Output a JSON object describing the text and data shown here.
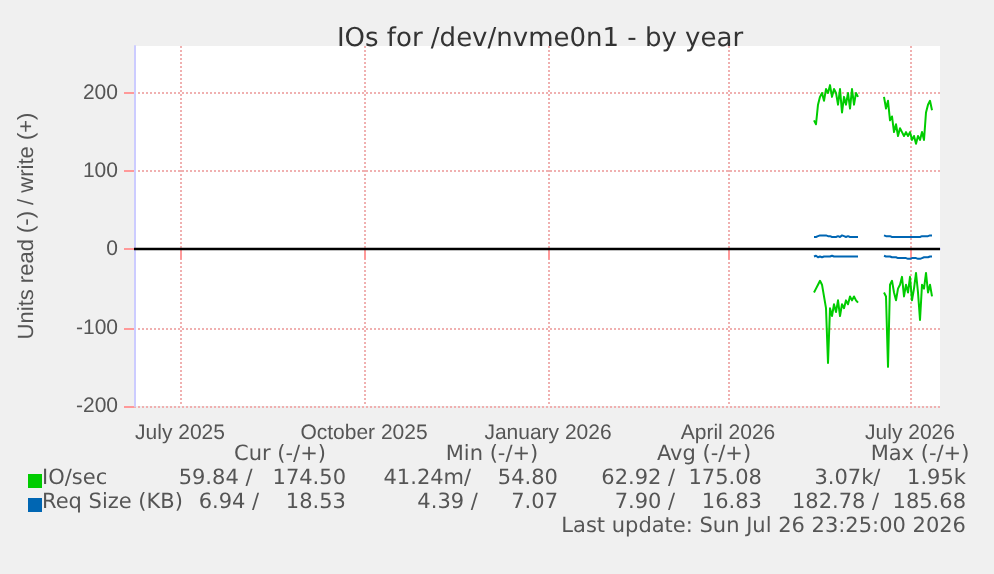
{
  "chart_data": {
    "type": "line",
    "title": "IOs for /dev/nvme0n1 - by year",
    "ylabel": "Units read (-) / write (+)",
    "x": [
      "2026-05-28",
      "2026-05-29",
      "2026-05-30",
      "2026-05-31",
      "2026-06-01",
      "2026-06-02",
      "2026-06-03",
      "2026-06-04",
      "2026-06-05",
      "2026-06-06",
      "2026-06-07",
      "2026-06-08",
      "2026-06-09",
      "2026-06-10",
      "2026-06-11",
      "2026-06-12",
      "2026-06-13",
      "2026-06-14",
      "2026-06-15",
      "2026-06-16",
      "2026-06-17",
      "2026-06-18",
      "2026-06-19",
      "2026-06-25",
      "2026-07-02",
      "2026-07-03",
      "2026-07-04",
      "2026-07-05",
      "2026-07-06",
      "2026-07-07",
      "2026-07-08",
      "2026-07-09",
      "2026-07-10",
      "2026-07-11",
      "2026-07-12",
      "2026-07-13",
      "2026-07-14",
      "2026-07-15",
      "2026-07-16",
      "2026-07-17",
      "2026-07-18",
      "2026-07-19",
      "2026-07-20",
      "2026-07-21",
      "2026-07-22",
      "2026-07-23",
      "2026-07-24",
      "2026-07-25",
      "2026-07-26"
    ],
    "series": [
      {
        "name": "IO/sec",
        "color": "#00cc00",
        "values": [
          165,
          160,
          185,
          195,
          200,
          190,
          205,
          200,
          210,
          195,
          205,
          200,
          185,
          205,
          175,
          195,
          185,
          200,
          180,
          205,
          185,
          200,
          195,
          null,
          195,
          180,
          190,
          165,
          170,
          150,
          160,
          145,
          155,
          150,
          145,
          150,
          145,
          150,
          140,
          145,
          135,
          145,
          140,
          150,
          140,
          175,
          185,
          190,
          178
        ]
      },
      {
        "color": "#00cc00",
        "values": [
          -55,
          -50,
          -45,
          -40,
          -45,
          -60,
          -75,
          -145,
          -75,
          -85,
          -70,
          -80,
          -65,
          -85,
          -70,
          -75,
          -65,
          -70,
          -60,
          -65,
          -60,
          -65,
          -68,
          null,
          -55,
          -60,
          -150,
          -45,
          -40,
          -55,
          -65,
          -50,
          -45,
          -35,
          -60,
          -45,
          -55,
          -35,
          -65,
          -50,
          -30,
          -55,
          -90,
          -45,
          -50,
          -30,
          -55,
          -45,
          -60
        ]
      },
      {
        "name": "Req Size (KB)",
        "color": "#0066b3",
        "values": [
          16,
          16,
          17,
          18,
          18,
          18,
          18,
          17,
          17,
          16,
          16,
          16,
          17,
          16,
          18,
          17,
          16,
          17,
          16,
          16,
          16,
          16,
          16,
          null,
          18,
          17,
          17,
          17,
          16,
          16,
          16,
          16,
          16,
          16,
          16,
          16,
          16,
          16,
          16,
          16,
          16,
          16,
          16,
          17,
          17,
          17,
          17,
          18,
          18
        ]
      },
      {
        "color": "#0066b3",
        "values": [
          -9,
          -8,
          -10,
          -9,
          -10,
          -9,
          -9,
          -9,
          -9,
          -8,
          -9,
          -9,
          -9,
          -9,
          -9,
          -9,
          -9,
          -9,
          -9,
          -9,
          -9,
          -9,
          -9,
          null,
          -8,
          -9,
          -9,
          -9,
          -10,
          -10,
          -10,
          -11,
          -11,
          -11,
          -11,
          -11,
          -12,
          -12,
          -11,
          -11,
          -11,
          -12,
          -12,
          -11,
          -10,
          -10,
          -10,
          -9,
          -9
        ]
      }
    ],
    "xlim": [
      "2025-06-22",
      "2026-07-30"
    ],
    "xticks": [
      {
        "value": "2025-07-15",
        "label": "July 2025"
      },
      {
        "value": "2025-10-15",
        "label": "October 2025"
      },
      {
        "value": "2026-01-15",
        "label": "January 2026"
      },
      {
        "value": "2026-04-15",
        "label": "April 2026"
      },
      {
        "value": "2026-07-15",
        "label": "July 2026"
      }
    ],
    "ylim": [
      -200,
      260
    ],
    "yticks": [
      -200,
      -100,
      0,
      100,
      200
    ],
    "ref_lines": [
      {
        "axis": "y",
        "value": 0,
        "color": "#000000"
      }
    ],
    "grid": true,
    "legend": "bottom left",
    "marker": "none",
    "line_style": "solid",
    "annotations": [
      "Cur (-/+)",
      "Min (-/+)",
      "Avg (-/+)",
      "Max (-/+)",
      "59.84 /   174.50",
      "41.24m/    54.80",
      "62.92 /  175.08",
      "3.07k/    1.95k",
      "6.94 /    18.53",
      "4.39 /     7.07",
      "7.90 /    16.83",
      "182.78 /  185.68",
      "Last update: Sun Jul 26 23:25:00 2026"
    ]
  }
}
